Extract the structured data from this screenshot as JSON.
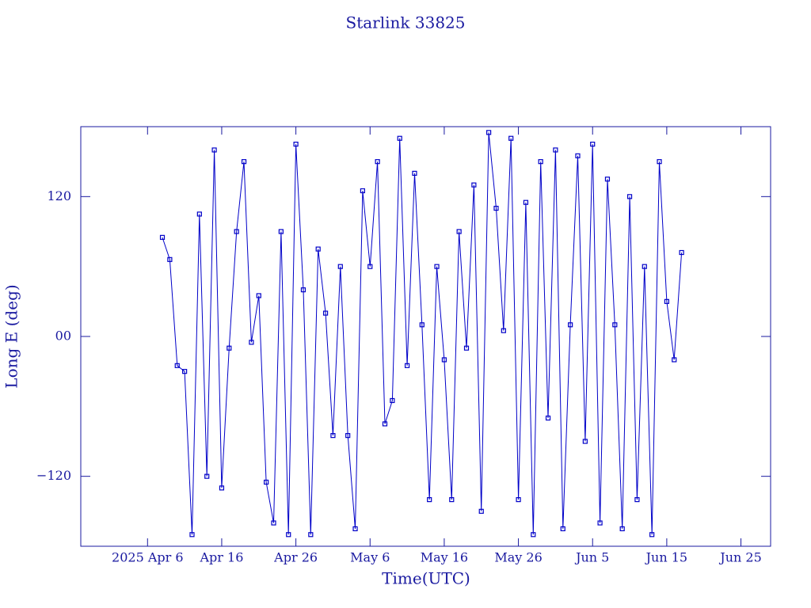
{
  "chart_data": {
    "type": "line",
    "title": "Starlink 33825",
    "x_label": "Time(UTC)",
    "y_label": "Long E (deg)",
    "x": [
      "2025-04-08",
      "2025-04-09",
      "2025-04-10",
      "2025-04-11",
      "2025-04-12",
      "2025-04-13",
      "2025-04-14",
      "2025-04-15",
      "2025-04-16",
      "2025-04-17",
      "2025-04-18",
      "2025-04-19",
      "2025-04-20",
      "2025-04-21",
      "2025-04-22",
      "2025-04-23",
      "2025-04-24",
      "2025-04-25",
      "2025-04-26",
      "2025-04-27",
      "2025-04-28",
      "2025-04-29",
      "2025-04-30",
      "2025-05-01",
      "2025-05-02",
      "2025-05-03",
      "2025-05-04",
      "2025-05-05",
      "2025-05-06",
      "2025-05-07",
      "2025-05-08",
      "2025-05-09",
      "2025-05-10",
      "2025-05-11",
      "2025-05-12",
      "2025-05-13",
      "2025-05-14",
      "2025-05-15",
      "2025-05-16",
      "2025-05-17",
      "2025-05-18",
      "2025-05-19",
      "2025-05-20",
      "2025-05-21",
      "2025-05-22",
      "2025-05-23",
      "2025-05-24",
      "2025-05-25",
      "2025-05-26",
      "2025-05-27",
      "2025-05-28",
      "2025-05-29",
      "2025-05-30",
      "2025-05-31",
      "2025-06-01",
      "2025-06-02",
      "2025-06-03",
      "2025-06-04",
      "2025-06-05",
      "2025-06-06",
      "2025-06-07",
      "2025-06-08",
      "2025-06-09",
      "2025-06-10",
      "2025-06-11",
      "2025-06-12",
      "2025-06-13",
      "2025-06-14",
      "2025-06-15",
      "2025-06-16",
      "2025-06-17"
    ],
    "series": [
      {
        "name": "Long E",
        "color": "#0000c8",
        "values": [
          85,
          66,
          -25,
          -30,
          -170,
          105,
          -120,
          160,
          -130,
          -10,
          90,
          150,
          -5,
          35,
          -125,
          -160,
          90,
          -170,
          165,
          40,
          -170,
          75,
          20,
          -85,
          60,
          -85,
          -165,
          125,
          60,
          150,
          -75,
          -55,
          170,
          -25,
          140,
          10,
          -140,
          60,
          -20,
          -140,
          90,
          -10,
          130,
          -150,
          175,
          110,
          5,
          170,
          -140,
          115,
          -170,
          150,
          -70,
          160,
          -165,
          10,
          155,
          -90,
          165,
          -160,
          135,
          10,
          -165,
          120,
          -140,
          60,
          -170,
          150,
          30,
          -20,
          72
        ]
      }
    ],
    "xlim": [
      "2025-03-28",
      "2025-06-29"
    ],
    "xticks": [
      {
        "value": "2025-04-06",
        "label": "2025 Apr  6"
      },
      {
        "value": "2025-04-16",
        "label": "Apr 16"
      },
      {
        "value": "2025-04-26",
        "label": "Apr 26"
      },
      {
        "value": "2025-05-06",
        "label": "May  6"
      },
      {
        "value": "2025-05-16",
        "label": "May 16"
      },
      {
        "value": "2025-05-26",
        "label": "May 26"
      },
      {
        "value": "2025-06-05",
        "label": "Jun  5"
      },
      {
        "value": "2025-06-15",
        "label": "Jun 15"
      },
      {
        "value": "2025-06-25",
        "label": "Jun 25"
      }
    ],
    "ylim": [
      -180,
      180
    ],
    "yticks": [
      {
        "value": -120,
        "label": "−120"
      },
      {
        "value": 0,
        "label": "00"
      },
      {
        "value": 120,
        "label": "120"
      }
    ],
    "grid": false
  }
}
